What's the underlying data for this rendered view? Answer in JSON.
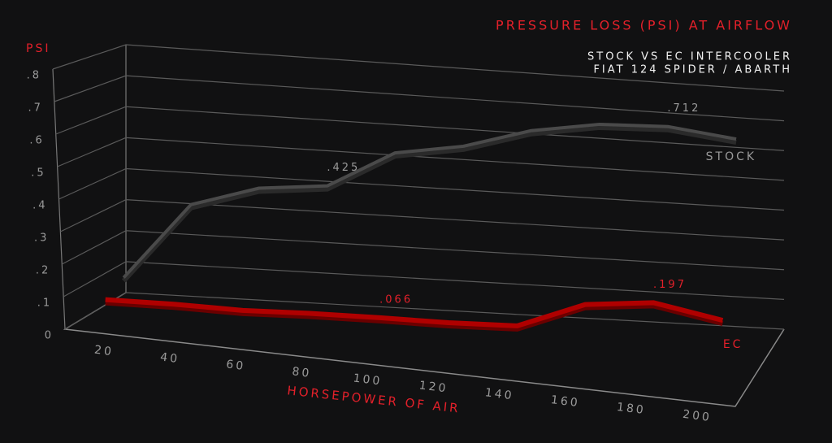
{
  "chart_data": {
    "type": "line",
    "title": "PRESSURE LOSS (PSI) AT AIRFLOW",
    "subtitle": [
      "STOCK VS EC INTERCOOLER",
      "FIAT 124 SPIDER / ABARTH"
    ],
    "y_label": "PSI",
    "x_label": "HORSEPOWER OF AIR",
    "x": [
      20,
      40,
      60,
      80,
      100,
      120,
      140,
      160,
      180,
      200
    ],
    "xlim": [
      20,
      200
    ],
    "xticks": [
      20,
      40,
      60,
      80,
      100,
      120,
      140,
      160,
      180,
      200
    ],
    "ylim": [
      0,
      0.8
    ],
    "yticks": [
      0,
      {
        "value": 0.1,
        "label": ".1"
      },
      {
        "value": 0.2,
        "label": ".2"
      },
      {
        "value": 0.3,
        "label": ".3"
      },
      {
        "value": 0.4,
        "label": ".4"
      },
      {
        "value": 0.5,
        "label": ".5"
      },
      {
        "value": 0.6,
        "label": ".6"
      },
      {
        "value": 0.7,
        "label": ".7"
      },
      {
        "value": 0.8,
        "label": ".8"
      }
    ],
    "grid": true,
    "series": [
      {
        "name": "STOCK",
        "color": "#4a4a4a",
        "values": [
          0.08,
          0.33,
          0.4,
          0.425,
          0.55,
          0.59,
          0.66,
          0.7,
          0.712,
          0.69
        ],
        "value_labels": [
          null,
          null,
          null,
          ".425",
          null,
          null,
          null,
          null,
          ".712",
          null
        ]
      },
      {
        "name": "EC",
        "color": "#b00000",
        "values": [
          0.045,
          0.05,
          0.05,
          0.06,
          0.066,
          0.07,
          0.08,
          0.17,
          0.197,
          0.16
        ],
        "value_labels": [
          null,
          null,
          null,
          null,
          ".066",
          null,
          null,
          null,
          ".197",
          null
        ]
      }
    ]
  }
}
